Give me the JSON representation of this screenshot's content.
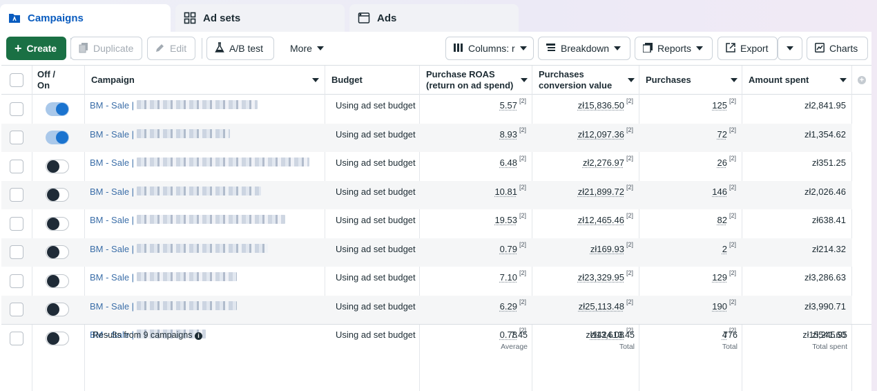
{
  "tabs": [
    {
      "label": "Campaigns",
      "icon": "campaign-folder-icon",
      "active": true
    },
    {
      "label": "Ad sets",
      "icon": "grid-icon",
      "active": false
    },
    {
      "label": "Ads",
      "icon": "window-icon",
      "active": false
    }
  ],
  "toolbar": {
    "create": "Create",
    "duplicate": "Duplicate",
    "edit": "Edit",
    "ab_test": "A/B test",
    "more": "More",
    "columns": "Columns: r",
    "breakdown": "Breakdown",
    "reports": "Reports",
    "export": "Export",
    "charts": "Charts"
  },
  "columns": {
    "off_on": "Off / On",
    "campaign": "Campaign",
    "budget": "Budget",
    "roas_line1": "Purchase ROAS",
    "roas_line2": "(return on ad spend)",
    "conv_line1": "Purchases",
    "conv_line2": "conversion value",
    "purchases": "Purchases",
    "amount_spent": "Amount spent"
  },
  "rows": [
    {
      "name": "BM - Sale |",
      "on": true,
      "budget": "Using ad set budget",
      "roas": "5.57",
      "conv": "zł15,836.50",
      "purchases": "125",
      "spent": "zł2,841.95"
    },
    {
      "name": "BM - Sale |",
      "on": true,
      "budget": "Using ad set budget",
      "roas": "8.93",
      "conv": "zł12,097.36",
      "purchases": "72",
      "spent": "zł1,354.62"
    },
    {
      "name": "BM - Sale |",
      "on": false,
      "budget": "Using ad set budget",
      "roas": "6.48",
      "conv": "zł2,276.97",
      "purchases": "26",
      "spent": "zł351.25"
    },
    {
      "name": "BM - Sale |",
      "on": false,
      "budget": "Using ad set budget",
      "roas": "10.81",
      "conv": "zł21,899.72",
      "purchases": "146",
      "spent": "zł2,026.46"
    },
    {
      "name": "BM - Sale |",
      "on": false,
      "budget": "Using ad set budget",
      "roas": "19.53",
      "conv": "zł12,465.46",
      "purchases": "82",
      "spent": "zł638.41"
    },
    {
      "name": "BM - Sale |",
      "on": false,
      "budget": "Using ad set budget",
      "roas": "0.79",
      "conv": "zł169.93",
      "purchases": "2",
      "spent": "zł214.32"
    },
    {
      "name": "BM - Sale |",
      "on": false,
      "budget": "Using ad set budget",
      "roas": "7.10",
      "conv": "zł23,329.95",
      "purchases": "129",
      "spent": "zł3,286.63"
    },
    {
      "name": "BM - Sale |",
      "on": false,
      "budget": "Using ad set budget",
      "roas": "6.29",
      "conv": "zł25,113.48",
      "purchases": "190",
      "spent": "zł3,990.71"
    },
    {
      "name": "BM - Sale |",
      "on": false,
      "budget": "Using ad set budget",
      "roas": "0.78",
      "conv": "zł424.08",
      "purchases": "4",
      "spent": "zł541.60"
    }
  ],
  "footnote_marker": "[2]",
  "footer": {
    "results": "Results from 9 campaigns",
    "roas": "7.45",
    "roas_sub": "Average",
    "conv": "zł113,613.45",
    "conv_sub": "Total",
    "purchases": "776",
    "purchases_sub": "Total",
    "spent": "zł15,245.95",
    "spent_sub": "Total spent"
  },
  "colors": {
    "create": "#1a7044",
    "active_tab": "#0a5cbf",
    "toggle_on": "#1a73cf",
    "link": "#3b6ea8"
  }
}
